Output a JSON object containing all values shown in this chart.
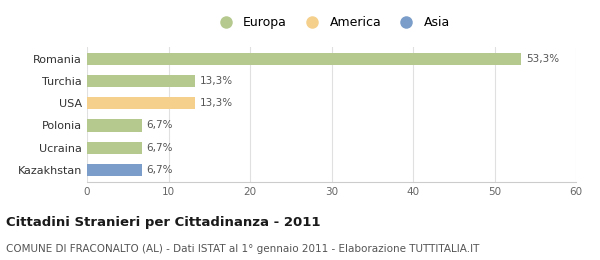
{
  "categories": [
    "Romania",
    "Turchia",
    "USA",
    "Polonia",
    "Ucraina",
    "Kazakhstan"
  ],
  "values": [
    53.3,
    13.3,
    13.3,
    6.7,
    6.7,
    6.7
  ],
  "colors": [
    "#b5c98e",
    "#b5c98e",
    "#f5d08c",
    "#b5c98e",
    "#b5c98e",
    "#7b9dc9"
  ],
  "labels": [
    "53,3%",
    "13,3%",
    "13,3%",
    "6,7%",
    "6,7%",
    "6,7%"
  ],
  "legend_items": [
    {
      "label": "Europa",
      "color": "#b5c98e"
    },
    {
      "label": "America",
      "color": "#f5d08c"
    },
    {
      "label": "Asia",
      "color": "#7b9dc9"
    }
  ],
  "xlim": [
    0,
    60
  ],
  "xticks": [
    0,
    10,
    20,
    30,
    40,
    50,
    60
  ],
  "title": "Cittadini Stranieri per Cittadinanza - 2011",
  "subtitle": "COMUNE DI FRACONALTO (AL) - Dati ISTAT al 1° gennaio 2011 - Elaborazione TUTTITALIA.IT",
  "background_color": "#ffffff",
  "bar_height": 0.55,
  "label_fontsize": 7.5,
  "title_fontsize": 9.5,
  "subtitle_fontsize": 7.5,
  "ytick_fontsize": 8,
  "xtick_fontsize": 7.5,
  "legend_fontsize": 9
}
